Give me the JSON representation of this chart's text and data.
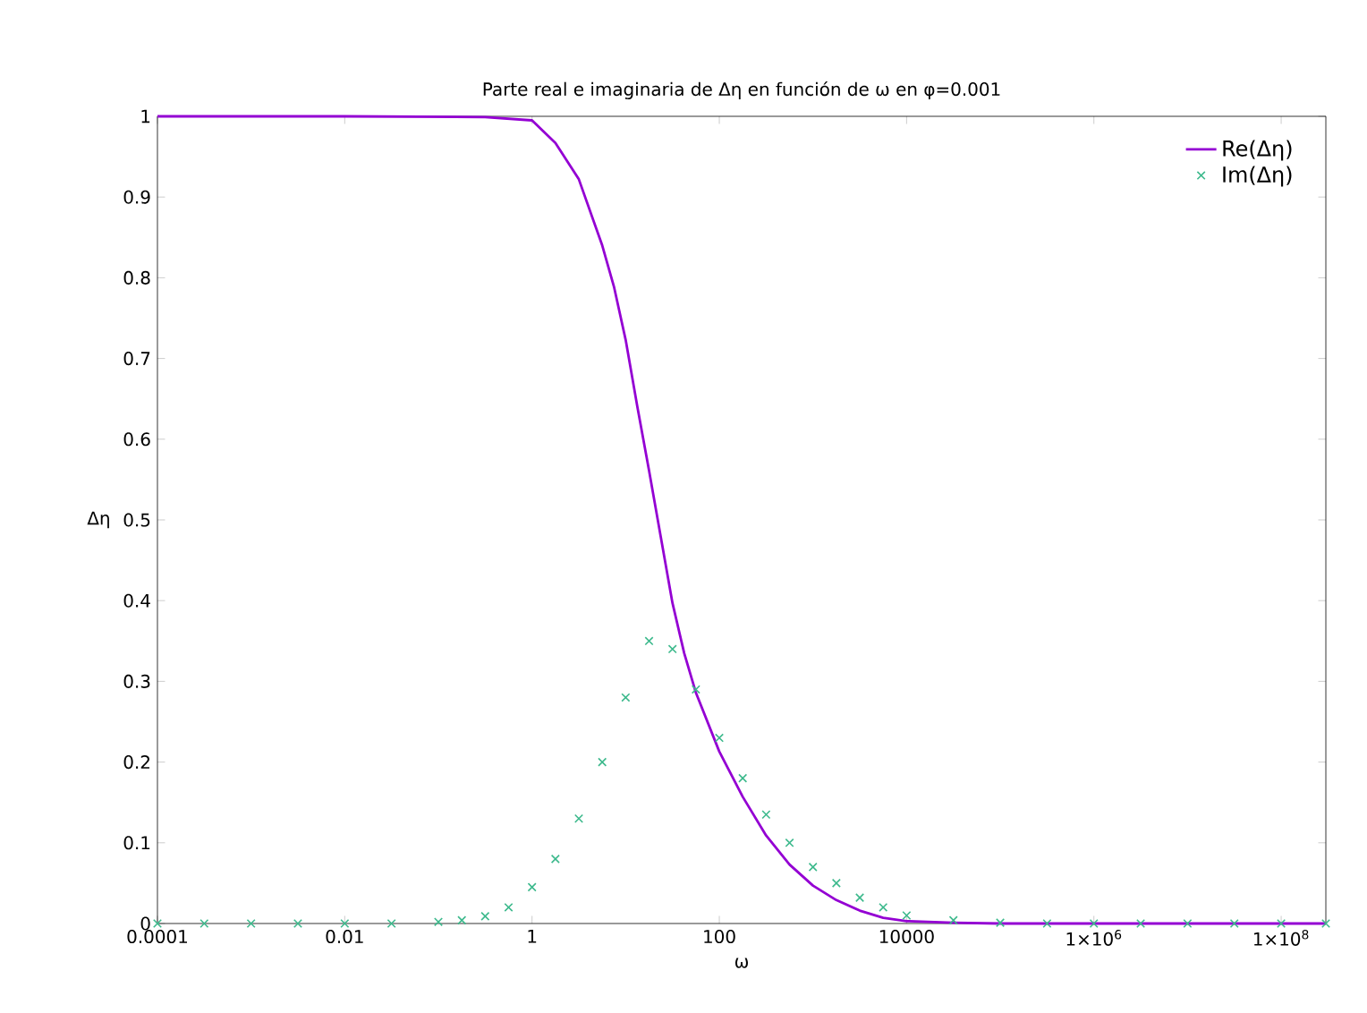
{
  "chart_data": {
    "type": "line",
    "title": "Parte real e imaginaria de Δη en función de ω en φ=0.001",
    "xlabel": "ω",
    "ylabel": "Δη",
    "log": "x",
    "xlim": [
      0.0001,
      300000000
    ],
    "ylim": [
      0,
      1
    ],
    "xticks": [
      0.0001,
      0.01,
      1,
      100,
      10000,
      {
        "value": 1000000,
        "label": "1×10$^{6}$"
      },
      {
        "value": 100000000,
        "label": "1×10$^{8}$"
      }
    ],
    "yticks": [
      0,
      0.1,
      0.2,
      0.3,
      0.4,
      0.5,
      0.6,
      0.7,
      0.8,
      0.9,
      1
    ],
    "grid": false,
    "legend": "top right",
    "series": [
      {
        "name": "Re(Δη)",
        "color": "#9400d3",
        "marker": "none",
        "line_style": "solid",
        "x": [
          0.0001,
          0.01,
          0.316,
          1,
          1.778,
          3.162,
          5.623,
          7.499,
          10,
          13.34,
          17.78,
          23.71,
          31.62,
          42.17,
          56.23,
          100,
          177.8,
          316.2,
          562.3,
          1000,
          1778,
          3162,
          5623,
          10000,
          31623,
          100000,
          1000000,
          100000000,
          300000000
        ],
        "values": [
          1,
          1,
          0.999,
          0.995,
          0.967,
          0.922,
          0.84,
          0.789,
          0.723,
          0.64,
          0.561,
          0.479,
          0.397,
          0.335,
          0.286,
          0.213,
          0.157,
          0.109,
          0.073,
          0.047,
          0.029,
          0.016,
          0.007,
          0.003,
          0.001,
          0,
          0,
          0,
          0
        ]
      },
      {
        "name": "Im(Δη)",
        "type": "scatter",
        "color": "#3cb98c",
        "marker": "cross",
        "x": [
          0.0001,
          0.000316,
          0.001,
          0.00316,
          0.01,
          0.0316,
          0.1,
          0.178,
          0.316,
          0.562,
          1,
          1.778,
          3.162,
          5.623,
          10,
          17.78,
          31.62,
          56.23,
          100,
          177.8,
          316.2,
          562.3,
          1000,
          1778,
          3162,
          5623,
          10000,
          31623,
          100000,
          316228,
          1000000,
          3162278,
          10000000,
          31622777,
          100000000,
          300000000
        ],
        "values": [
          0,
          0,
          0,
          0,
          0,
          0,
          0.002,
          0.004,
          0.009,
          0.02,
          0.045,
          0.08,
          0.13,
          0.2,
          0.28,
          0.35,
          0.34,
          0.29,
          0.23,
          0.18,
          0.135,
          0.1,
          0.07,
          0.05,
          0.032,
          0.02,
          0.01,
          0.004,
          0.001,
          0,
          0,
          0,
          0,
          0,
          0,
          0
        ]
      }
    ]
  }
}
